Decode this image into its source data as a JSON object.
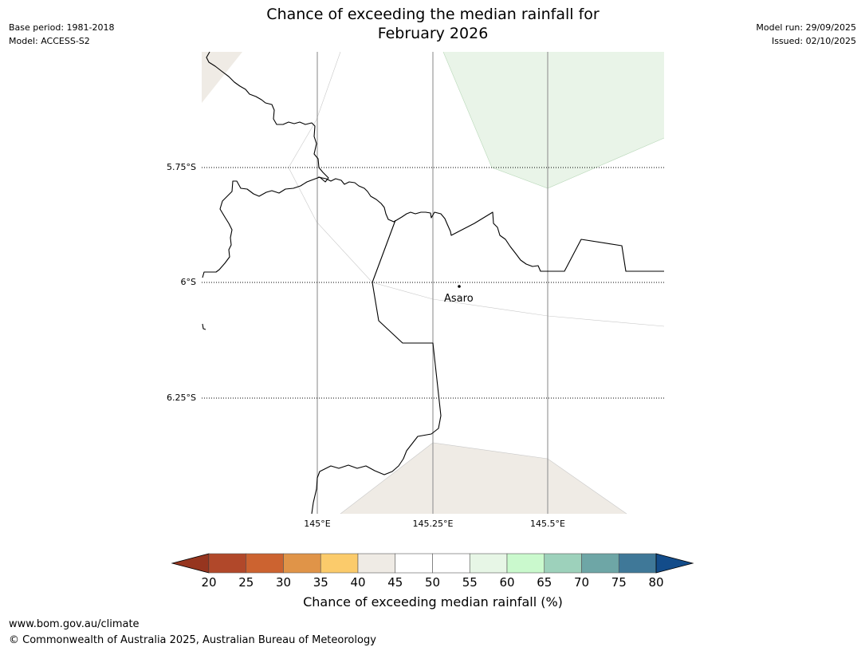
{
  "title_line1": "Chance of exceeding the median rainfall for",
  "title_line2": "February 2026",
  "meta_left": {
    "base_period": "Base period: 1981-2018",
    "model": "Model: ACCESS-S2"
  },
  "meta_right": {
    "model_run": "Model run: 29/09/2025",
    "issued": "Issued: 02/10/2025"
  },
  "map": {
    "lat_labels": [
      "5.75°S",
      "6°S",
      "6.25°S"
    ],
    "lon_labels": [
      "145°E",
      "145.25°E",
      "145.5°E"
    ],
    "place_name": "Asaro",
    "colors": {
      "green_fill": "#e9f4e8",
      "beige_fill": "#efebe5"
    }
  },
  "colorbar": {
    "ticks": [
      "20",
      "25",
      "30",
      "35",
      "40",
      "45",
      "50",
      "55",
      "60",
      "65",
      "70",
      "75",
      "80"
    ],
    "colors": [
      "#b1482a",
      "#cc6330",
      "#e09448",
      "#fbcb6b",
      "#efebe5",
      "#ffffff",
      "#ffffff",
      "#e7f6e6",
      "#caf9cd",
      "#9dd1bb",
      "#6ea6a6",
      "#3f7898"
    ],
    "under_color": "#96351f",
    "over_color": "#134c8a",
    "label": "Chance of exceeding median rainfall (%)"
  },
  "footer": {
    "url": "www.bom.gov.au/climate",
    "copyright": "© Commonwealth of Australia 2025, Australian Bureau of Meteorology"
  }
}
